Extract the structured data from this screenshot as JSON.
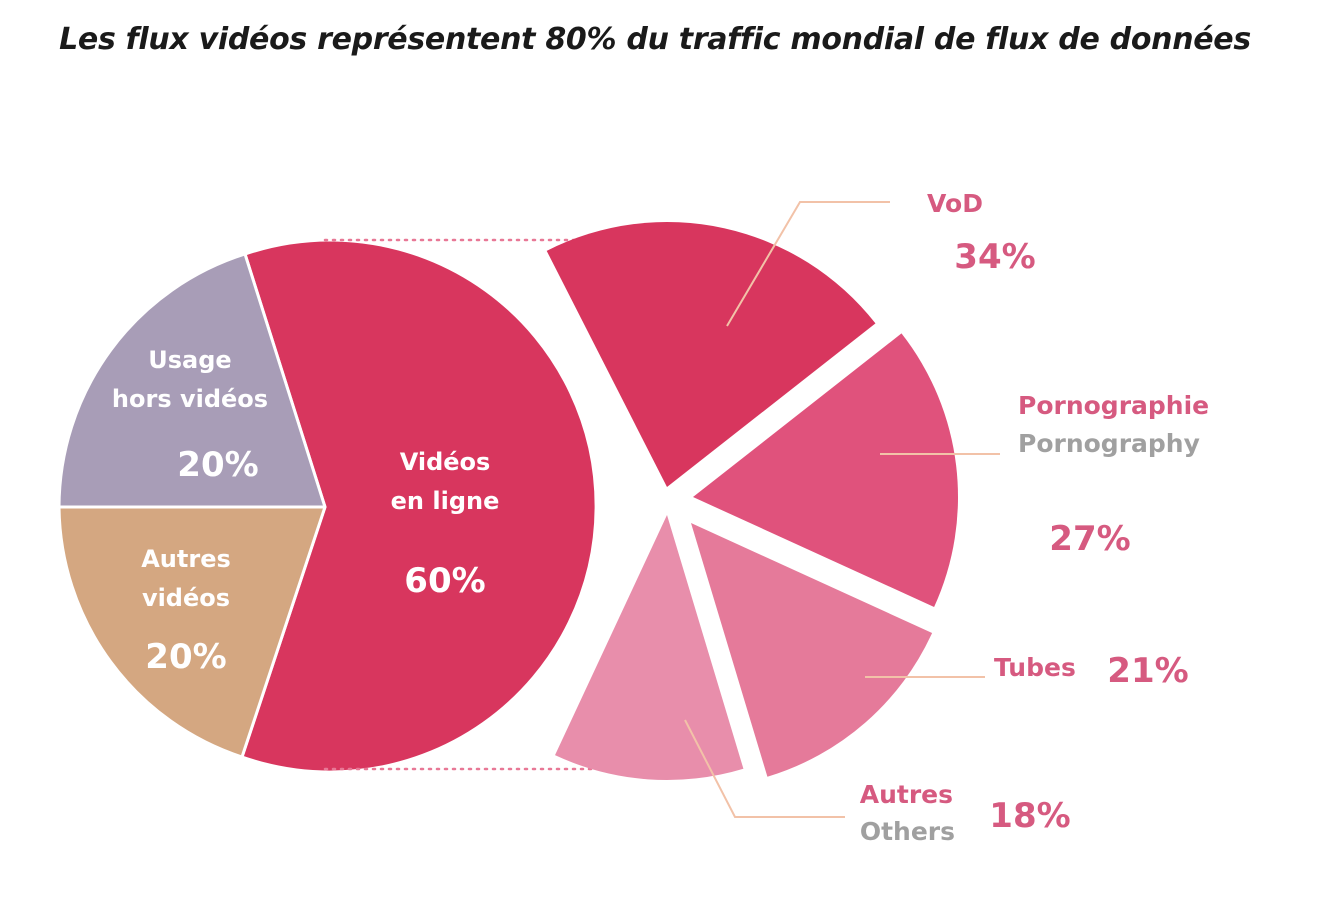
{
  "chart_data": [
    {
      "type": "pie",
      "title": "Les flux vidéos représentent 80% du traffic mondial de flux de données",
      "slices": [
        {
          "lines": [
            "Vidéos",
            "en ligne"
          ],
          "value_label": "60%",
          "value": 60,
          "color": "#d8365e"
        },
        {
          "lines": [
            "Autres",
            "vidéos"
          ],
          "value_label": "20%",
          "value": 20,
          "color": "#d4a781"
        },
        {
          "lines": [
            "Usage",
            "hors vidéos"
          ],
          "value_label": "20%",
          "value": 20,
          "color": "#a89db7"
        }
      ]
    },
    {
      "type": "pie",
      "slices": [
        {
          "label": "VoD",
          "label_en": "",
          "value_label": "34%",
          "value": 34,
          "color": "#d8365e"
        },
        {
          "label": "Pornographie",
          "label_en": "Pornography",
          "value_label": "27%",
          "value": 27,
          "color": "#e0527c"
        },
        {
          "label": "Tubes",
          "label_en": "",
          "value_label": "21%",
          "value": 21,
          "color": "#e57a9a"
        },
        {
          "label": "Autres",
          "label_en": "Others",
          "value_label": "18%",
          "value": 18,
          "color": "#e88eab"
        }
      ]
    }
  ],
  "colors": {
    "label_fr": "#d65a80",
    "label_en": "#a0a0a0",
    "leader_line": "#f2c2a8",
    "dotted_connector": "#e87896"
  }
}
